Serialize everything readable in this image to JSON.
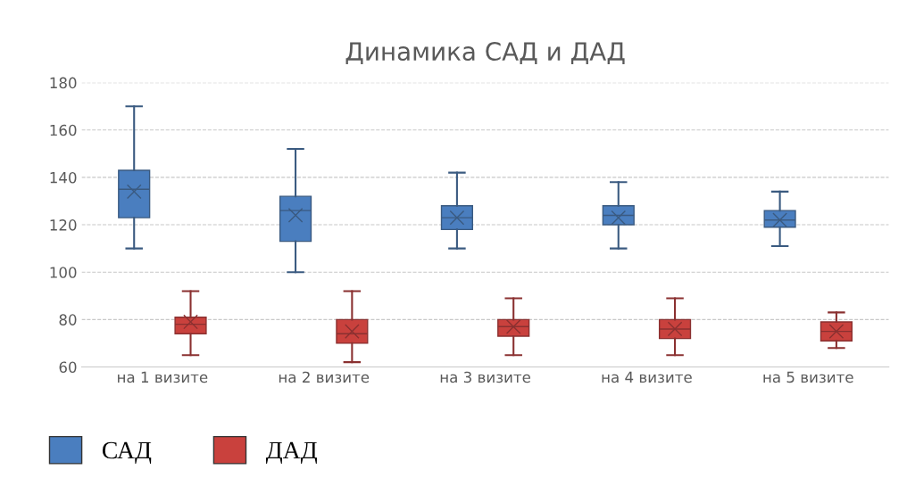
{
  "chart_data": {
    "type": "box",
    "title": "Динамика САД и ДАД",
    "categories": [
      "на 1 визите",
      "на 2 визите",
      "на 3 визите",
      "на 4 визите",
      "на 5 визите"
    ],
    "series": [
      {
        "name": "САД",
        "color": "#4a7ebf",
        "boxes": [
          {
            "low": 110,
            "q1": 123,
            "median": 135,
            "q3": 143,
            "high": 170,
            "mean": 134
          },
          {
            "low": 100,
            "q1": 113,
            "median": 126,
            "q3": 132,
            "high": 152,
            "mean": 124
          },
          {
            "low": 110,
            "q1": 118,
            "median": 123,
            "q3": 128,
            "high": 142,
            "mean": 123
          },
          {
            "low": 110,
            "q1": 120,
            "median": 124,
            "q3": 128,
            "high": 138,
            "mean": 123
          },
          {
            "low": 111,
            "q1": 119,
            "median": 122,
            "q3": 126,
            "high": 134,
            "mean": 122
          }
        ]
      },
      {
        "name": "ДАД",
        "color": "#c9413d",
        "boxes": [
          {
            "low": 65,
            "q1": 74,
            "median": 78,
            "q3": 81,
            "high": 92,
            "mean": 79
          },
          {
            "low": 62,
            "q1": 70,
            "median": 74,
            "q3": 80,
            "high": 92,
            "mean": 75
          },
          {
            "low": 65,
            "q1": 73,
            "median": 77,
            "q3": 80,
            "high": 89,
            "mean": 77
          },
          {
            "low": 65,
            "q1": 72,
            "median": 76,
            "q3": 80,
            "high": 89,
            "mean": 76
          },
          {
            "low": 68,
            "q1": 71,
            "median": 75,
            "q3": 79,
            "high": 83,
            "mean": 75
          }
        ]
      }
    ],
    "ylim": [
      60,
      180
    ],
    "yticks": [
      60,
      80,
      100,
      120,
      140,
      160,
      180
    ],
    "grid": "y",
    "legend": "bottom left"
  }
}
